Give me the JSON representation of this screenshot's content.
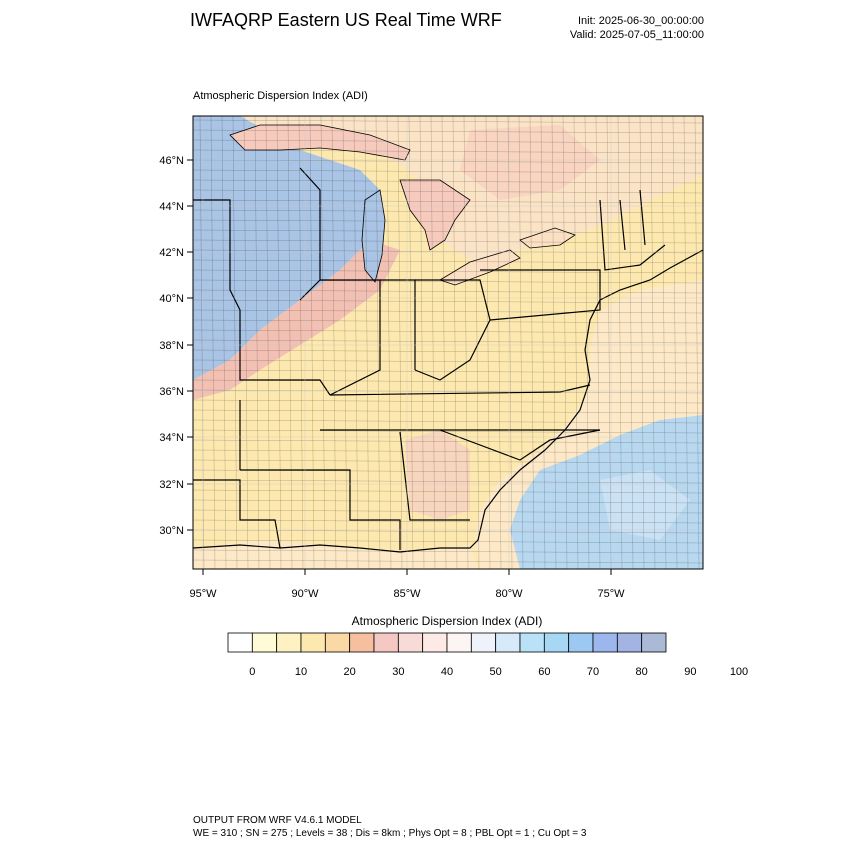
{
  "header": {
    "title": "IWFAQRP Eastern US Real Time WRF",
    "init": "Init: 2025-06-30_00:00:00",
    "valid": "Valid: 2025-07-05_11:00:00"
  },
  "map": {
    "field_label": "Atmospheric Dispersion Index   (ADI)",
    "lat_labels": [
      "46°N",
      "44°N",
      "42°N",
      "40°N",
      "38°N",
      "36°N",
      "34°N",
      "32°N",
      "30°N"
    ],
    "lon_labels": [
      "95°W",
      "90°W",
      "85°W",
      "80°W",
      "75°W"
    ],
    "colors": {
      "land_base": "#fde9b0",
      "high_adi": "#a9c4e4",
      "mid_adi": "#f6c5b8",
      "water_ocean": "#b8d8f0",
      "lake": "#a9c4e4"
    }
  },
  "colorbar": {
    "title": "Atmospheric Dispersion Index  (ADI)",
    "tick_labels": [
      "0",
      "10",
      "20",
      "30",
      "40",
      "50",
      "60",
      "70",
      "80",
      "90",
      "100"
    ],
    "colors": [
      "#ffffff",
      "#fffbd6",
      "#fff2c2",
      "#fde9b0",
      "#fbd9a4",
      "#f6bfa0",
      "#f5c8c4",
      "#f8dbd6",
      "#fdeae6",
      "#fdf5f3",
      "#eef2fb",
      "#d7eafa",
      "#b9e2f8",
      "#a6d8f6",
      "#9cc8f2",
      "#9bb7ee",
      "#a3b4e2",
      "#aab9d6"
    ]
  },
  "footer": {
    "line1": "OUTPUT FROM WRF V4.6.1 MODEL",
    "line2": "WE = 310 ; SN = 275 ; Levels = 38 ; Dis = 8km ; Phys Opt = 8 ; PBL Opt = 1 ; Cu Opt = 3"
  }
}
